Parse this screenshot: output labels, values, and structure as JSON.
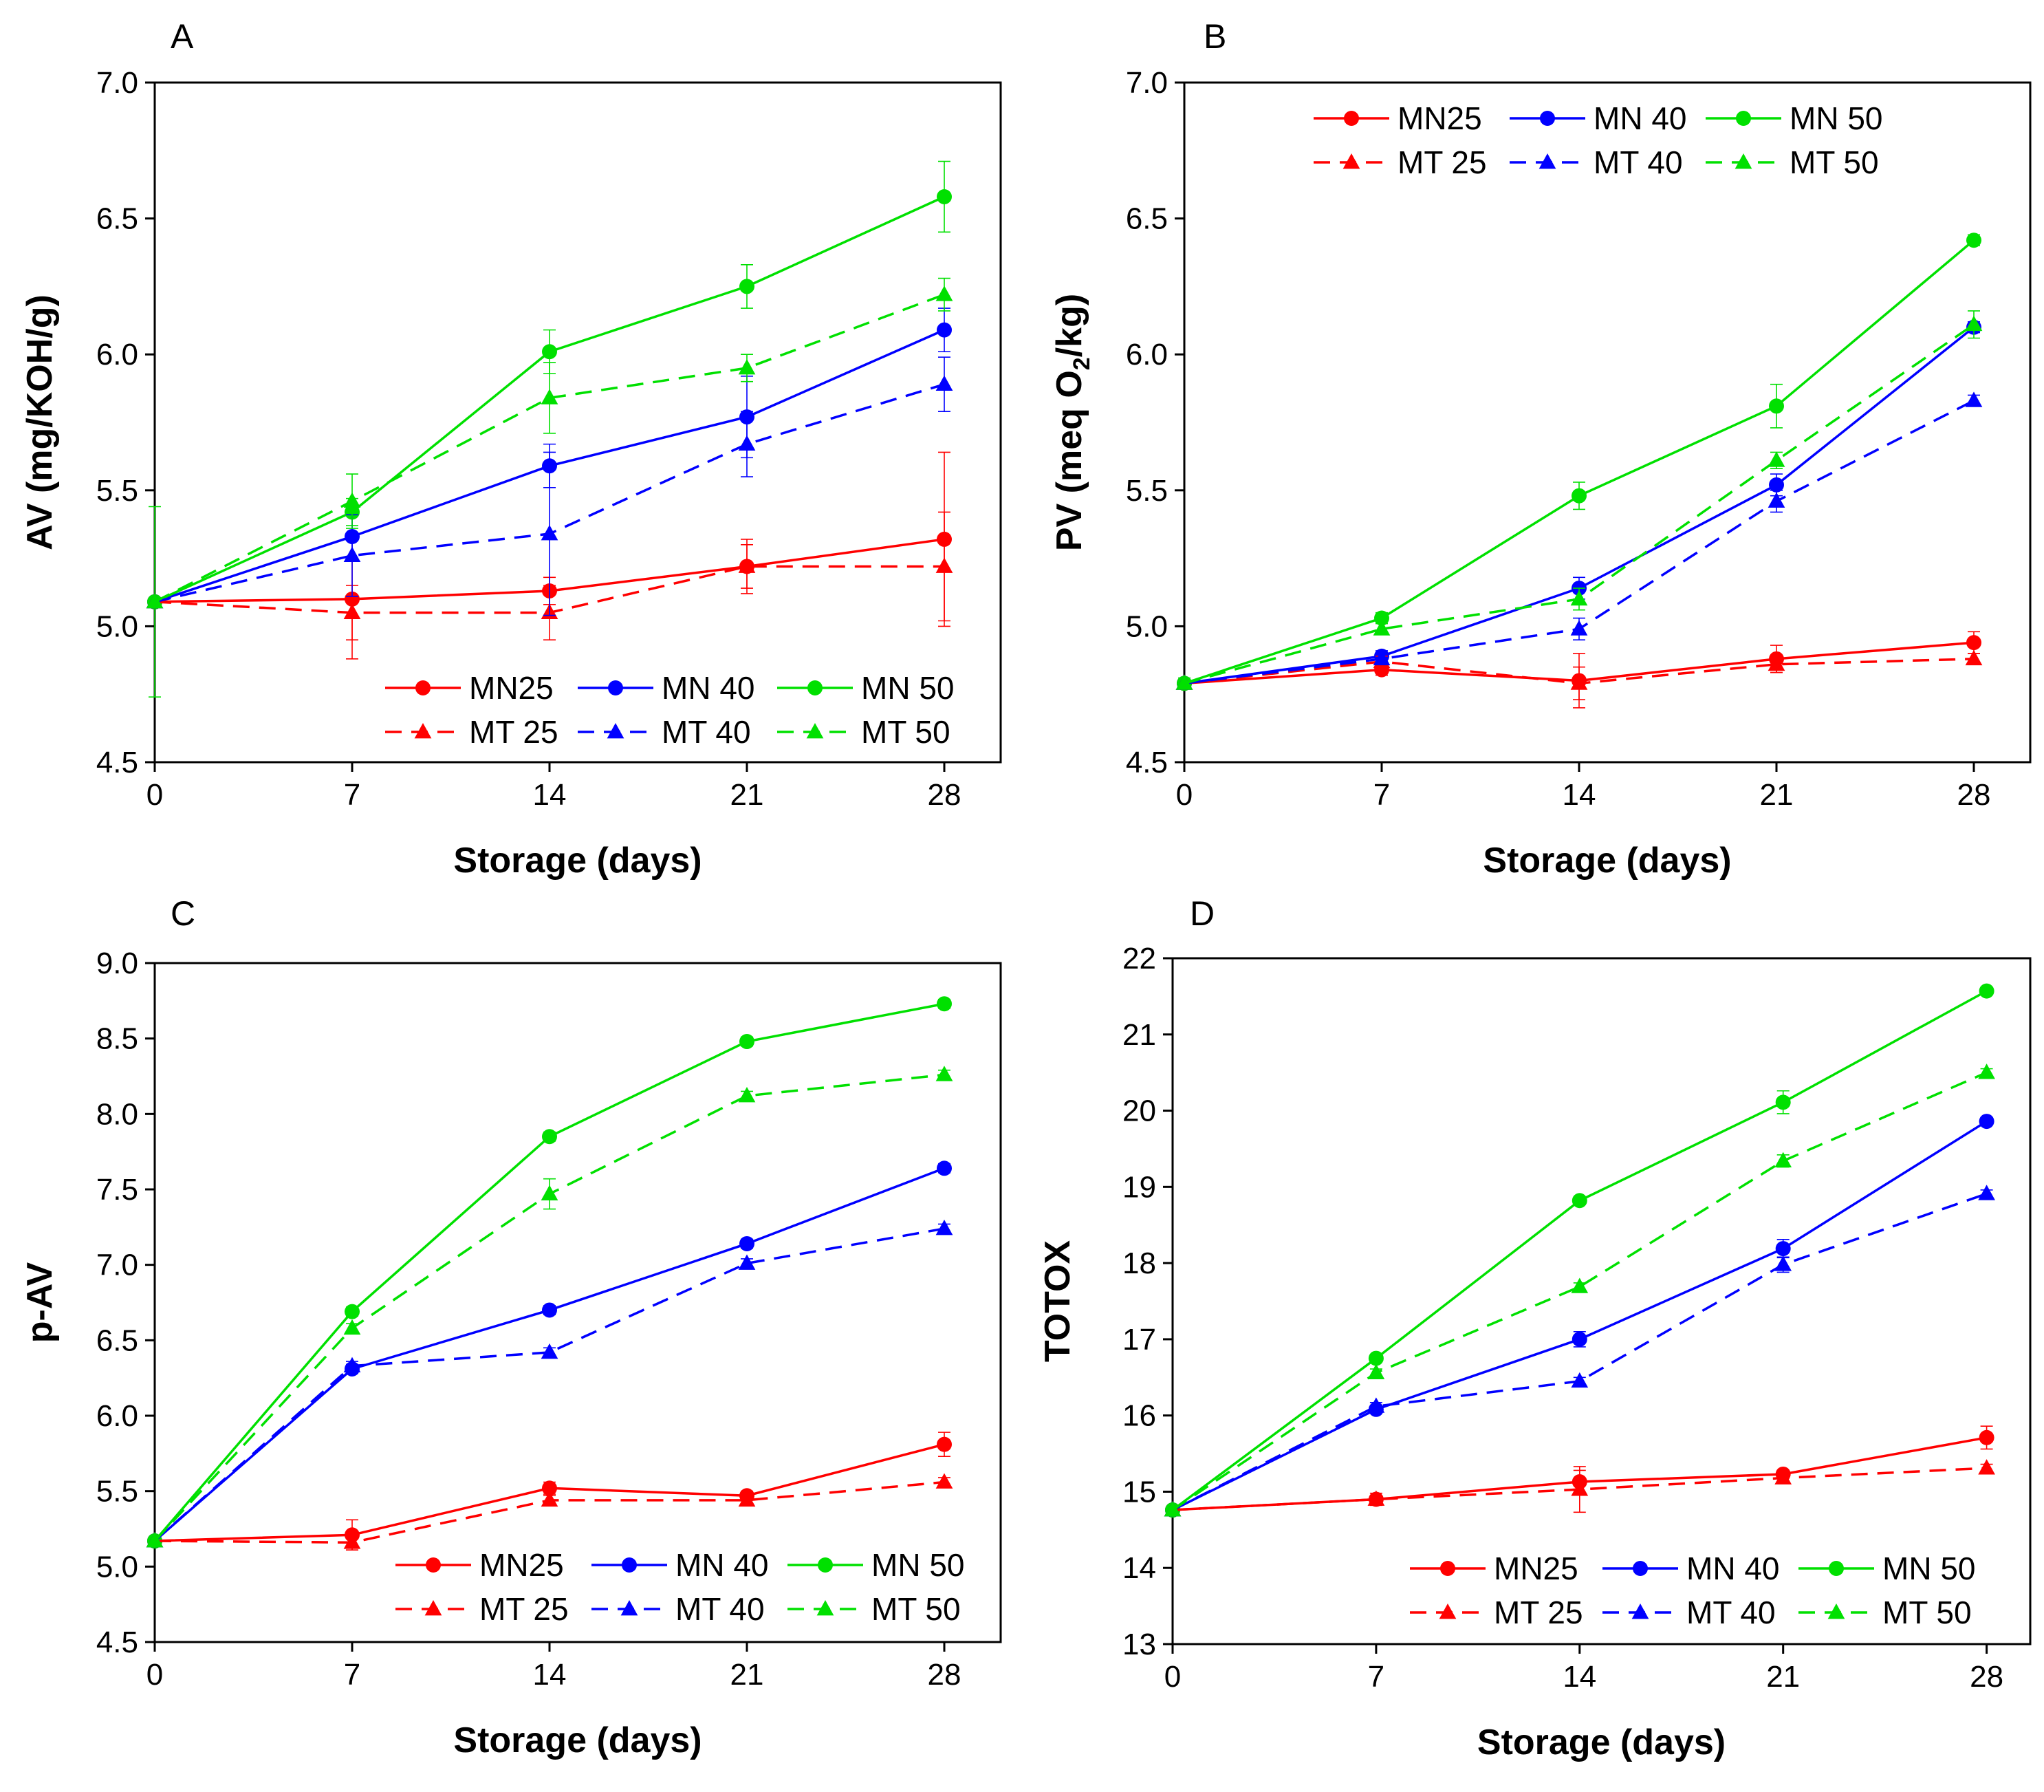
{
  "chart_data": [
    {
      "type": "line",
      "panel_label": "A",
      "xlabel": "Storage (days)",
      "ylabel": "AV (mg/KOH/g)",
      "ylabel_sub": "",
      "ylabel_suffix": "",
      "x": [
        0,
        7,
        14,
        21,
        28
      ],
      "xticks": [
        "0",
        "7",
        "14",
        "21",
        "28"
      ],
      "xlim": [
        0,
        30
      ],
      "ylim": [
        4.5,
        7.0
      ],
      "yticks": [
        "4.5",
        "5.0",
        "5.5",
        "6.0",
        "6.5",
        "7.0"
      ],
      "grid": false,
      "legend_position": "bottom-right",
      "series": [
        {
          "name": "MN25",
          "color": "#ff0000",
          "dashed": false,
          "marker": "circle",
          "values": [
            5.09,
            5.1,
            5.13,
            5.22,
            5.32
          ],
          "errors": [
            0.0,
            0.22,
            0.05,
            0.1,
            0.32
          ]
        },
        {
          "name": "MN 40",
          "color": "#0000ff",
          "dashed": false,
          "marker": "circle",
          "values": [
            5.09,
            5.33,
            5.59,
            5.77,
            6.09
          ],
          "errors": [
            0.0,
            0.08,
            0.08,
            0.15,
            0.08
          ]
        },
        {
          "name": "MN 50",
          "color": "#00e000",
          "dashed": false,
          "marker": "circle",
          "values": [
            5.09,
            5.42,
            6.01,
            6.25,
            6.58
          ],
          "errors": [
            0.35,
            0.05,
            0.08,
            0.08,
            0.13
          ]
        },
        {
          "name": "MT 25",
          "color": "#ff0000",
          "dashed": true,
          "marker": "triangle",
          "values": [
            5.09,
            5.05,
            5.05,
            5.22,
            5.22
          ],
          "errors": [
            0.0,
            0.1,
            0.1,
            0.08,
            0.2
          ]
        },
        {
          "name": "MT 40",
          "color": "#0000ff",
          "dashed": true,
          "marker": "triangle",
          "values": [
            5.09,
            5.26,
            5.34,
            5.67,
            5.89
          ],
          "errors": [
            0.0,
            0.15,
            0.3,
            0.12,
            0.1
          ]
        },
        {
          "name": "MT 50",
          "color": "#00e000",
          "dashed": true,
          "marker": "triangle",
          "values": [
            5.09,
            5.46,
            5.84,
            5.95,
            6.22
          ],
          "errors": [
            0.0,
            0.1,
            0.13,
            0.05,
            0.06
          ]
        }
      ]
    },
    {
      "type": "line",
      "panel_label": "B",
      "xlabel": "Storage (days)",
      "ylabel": "PV (meq O",
      "ylabel_sub": "2",
      "ylabel_suffix": "/kg)",
      "x": [
        0,
        7,
        14,
        21,
        28
      ],
      "xticks": [
        "0",
        "7",
        "14",
        "21",
        "28"
      ],
      "xlim": [
        0,
        30
      ],
      "ylim": [
        4.5,
        7.0
      ],
      "yticks": [
        "4.5",
        "5.0",
        "5.5",
        "6.0",
        "6.5",
        "7.0"
      ],
      "grid": false,
      "legend_position": "top-right",
      "series": [
        {
          "name": "MN25",
          "color": "#ff0000",
          "dashed": false,
          "marker": "circle",
          "values": [
            4.79,
            4.84,
            4.8,
            4.88,
            4.94
          ],
          "errors": [
            0.0,
            0.02,
            0.1,
            0.05,
            0.04
          ]
        },
        {
          "name": "MN 40",
          "color": "#0000ff",
          "dashed": false,
          "marker": "circle",
          "values": [
            4.79,
            4.89,
            5.14,
            5.52,
            6.1
          ],
          "errors": [
            0.0,
            0.02,
            0.04,
            0.04,
            0.02
          ]
        },
        {
          "name": "MN 50",
          "color": "#00e000",
          "dashed": false,
          "marker": "circle",
          "values": [
            4.79,
            5.03,
            5.48,
            5.81,
            6.42
          ],
          "errors": [
            0.02,
            0.02,
            0.05,
            0.08,
            0.02
          ]
        },
        {
          "name": "MT 25",
          "color": "#ff0000",
          "dashed": true,
          "marker": "triangle",
          "values": [
            4.79,
            4.87,
            4.79,
            4.86,
            4.88
          ],
          "errors": [
            0.0,
            0.02,
            0.06,
            0.03,
            0.02
          ]
        },
        {
          "name": "MT 40",
          "color": "#0000ff",
          "dashed": true,
          "marker": "triangle",
          "values": [
            4.79,
            4.88,
            4.99,
            5.46,
            5.83
          ],
          "errors": [
            0.0,
            0.02,
            0.04,
            0.04,
            0.02
          ]
        },
        {
          "name": "MT 50",
          "color": "#00e000",
          "dashed": true,
          "marker": "triangle",
          "values": [
            4.79,
            4.99,
            5.1,
            5.61,
            6.11
          ],
          "errors": [
            0.0,
            0.02,
            0.04,
            0.03,
            0.05
          ]
        }
      ]
    },
    {
      "type": "line",
      "panel_label": "C",
      "xlabel": "Storage (days)",
      "ylabel": "p-AV",
      "ylabel_sub": "",
      "ylabel_suffix": "",
      "x": [
        0,
        7,
        14,
        21,
        28
      ],
      "xticks": [
        "0",
        "7",
        "14",
        "21",
        "28"
      ],
      "xlim": [
        0,
        30
      ],
      "ylim": [
        4.5,
        9.0
      ],
      "yticks": [
        "4.5",
        "5.0",
        "5.5",
        "6.0",
        "6.5",
        "7.0",
        "7.5",
        "8.0",
        "8.5",
        "9.0"
      ],
      "grid": false,
      "legend_position": "bottom-right",
      "series": [
        {
          "name": "MN25",
          "color": "#ff0000",
          "dashed": false,
          "marker": "circle",
          "values": [
            5.17,
            5.21,
            5.52,
            5.47,
            5.81
          ],
          "errors": [
            0.0,
            0.1,
            0.04,
            0.03,
            0.08
          ]
        },
        {
          "name": "MN 40",
          "color": "#0000ff",
          "dashed": false,
          "marker": "circle",
          "values": [
            5.17,
            6.31,
            6.7,
            7.14,
            7.64
          ],
          "errors": [
            0.0,
            0.03,
            0.03,
            0.03,
            0.03
          ]
        },
        {
          "name": "MN 50",
          "color": "#00e000",
          "dashed": false,
          "marker": "circle",
          "values": [
            5.17,
            6.69,
            7.85,
            8.48,
            8.73
          ],
          "errors": [
            0.0,
            0.03,
            0.03,
            0.03,
            0.03
          ]
        },
        {
          "name": "MT 25",
          "color": "#ff0000",
          "dashed": true,
          "marker": "triangle",
          "values": [
            5.17,
            5.16,
            5.44,
            5.44,
            5.56
          ],
          "errors": [
            0.0,
            0.05,
            0.03,
            0.03,
            0.03
          ]
        },
        {
          "name": "MT 40",
          "color": "#0000ff",
          "dashed": true,
          "marker": "triangle",
          "values": [
            5.17,
            6.33,
            6.42,
            7.01,
            7.24
          ],
          "errors": [
            0.0,
            0.03,
            0.03,
            0.03,
            0.03
          ]
        },
        {
          "name": "MT 50",
          "color": "#00e000",
          "dashed": true,
          "marker": "triangle",
          "values": [
            5.17,
            6.58,
            7.47,
            8.12,
            8.26
          ],
          "errors": [
            0.0,
            0.03,
            0.1,
            0.03,
            0.03
          ]
        }
      ]
    },
    {
      "type": "line",
      "panel_label": "D",
      "xlabel": "Storage (days)",
      "ylabel": "TOTOX",
      "ylabel_sub": "",
      "ylabel_suffix": "",
      "x": [
        0,
        7,
        14,
        21,
        28
      ],
      "xticks": [
        "0",
        "7",
        "14",
        "21",
        "28"
      ],
      "xlim": [
        0,
        29.5
      ],
      "ylim": [
        13,
        22
      ],
      "yticks": [
        "13",
        "14",
        "15",
        "16",
        "17",
        "18",
        "19",
        "20",
        "21",
        "22"
      ],
      "grid": false,
      "legend_position": "bottom-right",
      "series": [
        {
          "name": "MN25",
          "color": "#ff0000",
          "dashed": false,
          "marker": "circle",
          "values": [
            14.76,
            14.9,
            15.13,
            15.23,
            15.71
          ],
          "errors": [
            0.0,
            0.08,
            0.15,
            0.05,
            0.15
          ]
        },
        {
          "name": "MN 40",
          "color": "#0000ff",
          "dashed": false,
          "marker": "circle",
          "values": [
            14.76,
            16.08,
            17.0,
            18.19,
            19.86
          ],
          "errors": [
            0.0,
            0.05,
            0.1,
            0.12,
            0.05
          ]
        },
        {
          "name": "MN 50",
          "color": "#00e000",
          "dashed": false,
          "marker": "circle",
          "values": [
            14.76,
            16.75,
            18.82,
            20.11,
            21.57
          ],
          "errors": [
            0.0,
            0.05,
            0.05,
            0.15,
            0.05
          ]
        },
        {
          "name": "MT 25",
          "color": "#ff0000",
          "dashed": true,
          "marker": "triangle",
          "values": [
            14.76,
            14.9,
            15.03,
            15.18,
            15.31
          ],
          "errors": [
            0.0,
            0.05,
            0.3,
            0.05,
            0.05
          ]
        },
        {
          "name": "MT 40",
          "color": "#0000ff",
          "dashed": true,
          "marker": "triangle",
          "values": [
            14.76,
            16.12,
            16.45,
            17.98,
            18.91
          ],
          "errors": [
            0.0,
            0.05,
            0.05,
            0.1,
            0.05
          ]
        },
        {
          "name": "MT 50",
          "color": "#00e000",
          "dashed": true,
          "marker": "triangle",
          "values": [
            14.76,
            16.56,
            17.69,
            19.34,
            20.5
          ],
          "errors": [
            0.0,
            0.05,
            0.05,
            0.08,
            0.05
          ]
        }
      ]
    }
  ]
}
